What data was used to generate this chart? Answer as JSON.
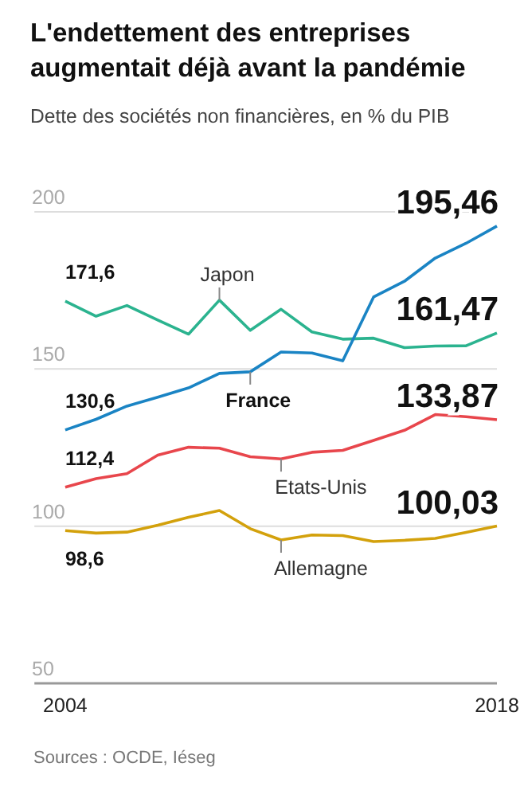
{
  "chart_data": {
    "type": "line",
    "title": "L'endettement des entreprises augmentait déjà avant la pandémie",
    "subtitle": "Dette des sociétés non financières, en % du PIB",
    "annotations": [
      "Sources : OCDE, Iéseg"
    ],
    "x": [
      2004,
      2005,
      2006,
      2007,
      2008,
      2009,
      2010,
      2011,
      2012,
      2013,
      2014,
      2015,
      2016,
      2017,
      2018
    ],
    "xlim": [
      2003,
      2018
    ],
    "xticks": [
      2004,
      2018
    ],
    "ylim": [
      50,
      200
    ],
    "yticks": [
      50,
      100,
      150,
      200
    ],
    "grid": "y",
    "marker": "none",
    "line_style": "solid",
    "series": [
      {
        "name": "Japon",
        "color": "#2bb38f",
        "values": [
          171.6,
          166.8,
          170.2,
          165.6,
          161.1,
          171.9,
          162.3,
          169.0,
          161.8,
          159.5,
          159.8,
          156.8,
          157.3,
          157.4,
          161.47
        ],
        "value_labels": [
          "171,6",
          null,
          null,
          null,
          null,
          null,
          null,
          null,
          null,
          null,
          null,
          null,
          null,
          null,
          "161,47"
        ]
      },
      {
        "name": "France",
        "color": "#1a84c4",
        "values": [
          130.6,
          134.0,
          138.2,
          141.0,
          144.0,
          148.6,
          149.1,
          155.4,
          155.1,
          152.6,
          172.9,
          177.9,
          185.3,
          190.0,
          195.46
        ],
        "value_labels": [
          "130,6",
          null,
          null,
          null,
          null,
          null,
          null,
          null,
          null,
          null,
          null,
          null,
          null,
          null,
          "195,46"
        ]
      },
      {
        "name": "Etats-Unis",
        "color": "#e8464c",
        "values": [
          112.4,
          115.1,
          116.7,
          122.6,
          125.1,
          124.8,
          122.1,
          121.4,
          123.5,
          124.1,
          127.3,
          130.5,
          135.5,
          134.8,
          133.87
        ],
        "value_labels": [
          "112,4",
          null,
          null,
          null,
          null,
          null,
          null,
          null,
          null,
          null,
          null,
          null,
          null,
          null,
          "133,87"
        ]
      },
      {
        "name": "Allemagne",
        "color": "#d3a10c",
        "values": [
          98.6,
          97.8,
          98.1,
          100.3,
          102.8,
          105.0,
          99.2,
          95.6,
          97.2,
          97.0,
          95.1,
          95.5,
          96.1,
          98.0,
          100.03
        ],
        "value_labels": [
          "98,6",
          null,
          null,
          null,
          null,
          null,
          null,
          null,
          null,
          null,
          null,
          null,
          null,
          null,
          "100,03"
        ]
      }
    ]
  }
}
